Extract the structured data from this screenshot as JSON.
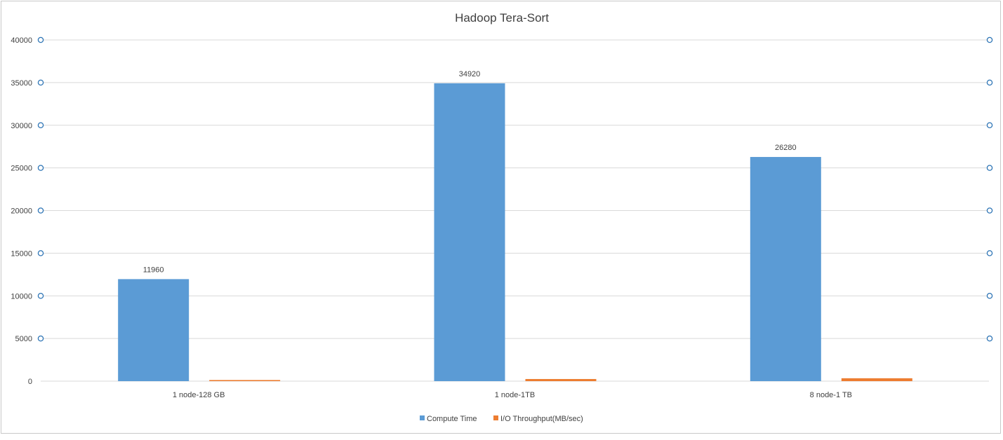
{
  "chart_data": {
    "type": "bar",
    "title": "Hadoop Tera-Sort",
    "categories": [
      "1  node-128 GB",
      "1 node-1TB",
      "8  node-1 TB"
    ],
    "series": [
      {
        "name": "Compute Time",
        "values": [
          11960,
          34920,
          26280
        ],
        "color": "#5b9bd5",
        "data_labels": [
          "11960",
          "34920",
          "26280"
        ]
      },
      {
        "name": "I/O Throughput(MB/sec)",
        "values": [
          130,
          250,
          340
        ],
        "color": "#ed7d31"
      }
    ],
    "y_ticks": [
      "0",
      "5000",
      "10000",
      "15000",
      "20000",
      "25000",
      "30000",
      "35000",
      "40000"
    ],
    "ylim": [
      0,
      40000
    ],
    "grid": true,
    "legend": "bottom"
  }
}
